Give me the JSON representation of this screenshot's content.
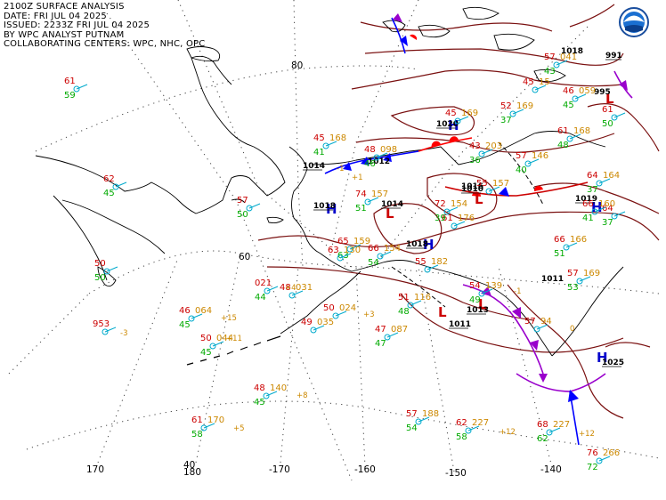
{
  "header": {
    "line1": "2100Z SURFACE ANALYSIS",
    "line2": "DATE: FRI JUL 04 2025",
    "line3": "ISSUED: 2233Z FRI JUL 04 2025",
    "line4": "BY WPC ANALYST PUTNAM",
    "line5": "COLLABORATING CENTERS: WPC, NHC, OPC"
  },
  "logo": {
    "name": "NOAA emblem"
  },
  "graticule_labels": [
    "80",
    "60",
    "170",
    "180",
    "-170",
    "-160",
    "-150",
    "-140",
    "40"
  ],
  "pressure_centers": [
    {
      "type": "H",
      "value": "1019"
    },
    {
      "type": "H",
      "value": "1025"
    },
    {
      "type": "H",
      "value": "1018"
    },
    {
      "type": "L",
      "value": "1014"
    },
    {
      "type": "L",
      "value": "1013"
    },
    {
      "type": "L",
      "value": "1011"
    },
    {
      "type": "L",
      "value": "1010"
    },
    {
      "type": "H",
      "value": "1020"
    },
    {
      "type": "H",
      "value": "1018"
    },
    {
      "type": "H",
      "value": "991"
    },
    {
      "type": "L",
      "value": "995"
    }
  ],
  "isobar_labels": [
    "1014",
    "1012",
    "1018",
    "1016",
    "1011"
  ],
  "station_plots": [
    {
      "t": "61",
      "d": "59"
    },
    {
      "t": "62",
      "d": "45"
    },
    {
      "t": "50",
      "d": "50"
    },
    {
      "t": "57",
      "d": "50"
    },
    {
      "t": "45",
      "p": "168",
      "d": "41"
    },
    {
      "t": "48",
      "p": "098",
      "d": "46"
    },
    {
      "t": "74",
      "p": "157",
      "d": "51"
    },
    {
      "t": "65",
      "p": "159",
      "d": "63"
    },
    {
      "t": "63",
      "p": "130"
    },
    {
      "t": "61",
      "p": "176"
    },
    {
      "t": "55",
      "p": "157"
    },
    {
      "t": "72",
      "p": "154",
      "d": "39"
    },
    {
      "t": "66",
      "p": "154",
      "d": "54"
    },
    {
      "t": "43",
      "p": "203",
      "d": "36"
    },
    {
      "t": "57",
      "p": "146",
      "d": "40"
    },
    {
      "t": "52",
      "p": "169",
      "d": "37"
    },
    {
      "t": "45",
      "p": "169"
    },
    {
      "t": "57",
      "p": "041",
      "d": "43"
    },
    {
      "t": "46",
      "p": "059",
      "d": "45"
    },
    {
      "t": "61",
      "p": "168",
      "d": "48"
    },
    {
      "t": "64",
      "p": "164",
      "d": "37"
    },
    {
      "t": "66",
      "p": "166",
      "d": "51"
    },
    {
      "t": "64",
      "d": "37"
    },
    {
      "t": "61",
      "d": "50"
    },
    {
      "t": "66",
      "p": "160",
      "d": "41"
    },
    {
      "t": "54",
      "p": "139",
      "d": "49"
    },
    {
      "t": "57",
      "p": "94"
    },
    {
      "t": "021",
      "d": "44"
    },
    {
      "t": "48",
      "p": "031"
    },
    {
      "t": "46",
      "p": "064",
      "d": "45"
    },
    {
      "t": "49",
      "p": "035"
    },
    {
      "t": "50",
      "p": "024"
    },
    {
      "t": "50",
      "p": "044",
      "d": "45"
    },
    {
      "t": "47",
      "p": "087",
      "d": "47"
    },
    {
      "t": "48",
      "p": "140",
      "d": "45"
    },
    {
      "t": "61",
      "p": "170",
      "d": "58"
    },
    {
      "t": "57",
      "p": "188",
      "d": "54"
    },
    {
      "t": "62",
      "p": "227",
      "d": "58"
    },
    {
      "t": "68",
      "p": "227",
      "d": "62"
    },
    {
      "t": "76",
      "p": "266",
      "d": "72"
    },
    {
      "t": "953"
    },
    {
      "t": "55",
      "p": "182"
    },
    {
      "t": "51",
      "p": "116",
      "d": "48"
    },
    {
      "t": "57",
      "p": "169",
      "d": "53"
    },
    {
      "t": "45",
      "p": "15"
    }
  ],
  "tendencies": [
    "+15",
    "-3",
    "+8",
    "+5",
    "+12",
    "+12",
    "+11",
    "+3",
    "-1",
    "+4",
    "-1",
    "+1",
    "0"
  ],
  "colors": {
    "isobar": "#7a1010",
    "temperature": "#cc0000",
    "dewpoint": "#00aa00",
    "pressure": "#cc8800",
    "station": "#00aacc",
    "coast": "#000000",
    "cold_front": "#0000ff",
    "warm_front": "#ff0000",
    "occluded_front": "#9900cc",
    "trough": "#000000"
  }
}
